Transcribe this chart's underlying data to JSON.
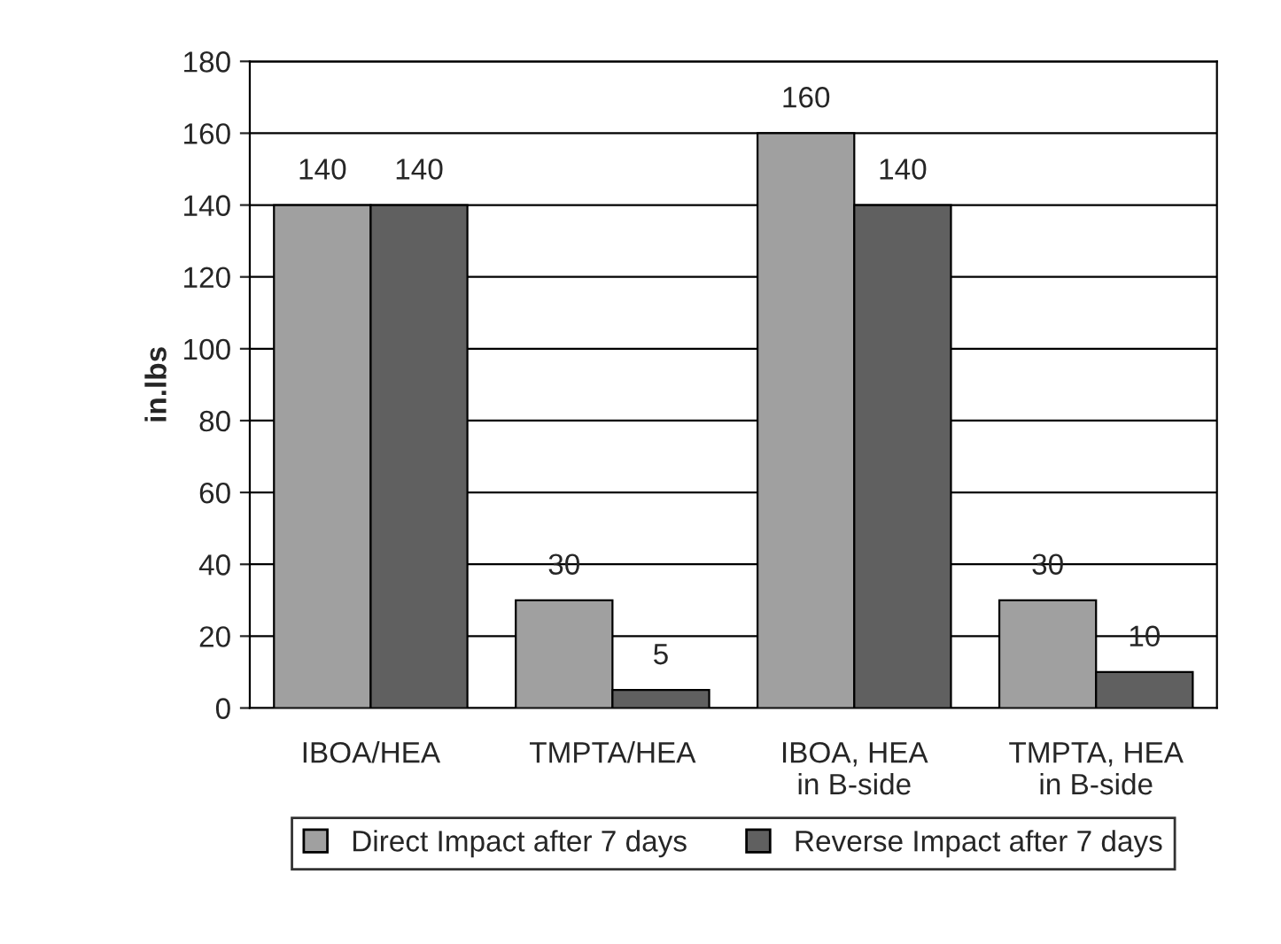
{
  "chart_data": {
    "type": "bar",
    "ylabel": "in.lbs",
    "categories": [
      "IBOA/HEA",
      "TMPTA/HEA",
      "IBOA, HEA\nin B-side",
      "TMPTA, HEA\nin B-side"
    ],
    "series": [
      {
        "name": "Direct Impact after 7 days",
        "color": "#a0a0a0",
        "values": [
          140,
          30,
          160,
          30
        ]
      },
      {
        "name": "Reverse Impact after 7 days",
        "color": "#606060",
        "values": [
          140,
          5,
          140,
          10
        ]
      }
    ],
    "ylim": [
      0,
      180
    ],
    "yticks": [
      0,
      20,
      40,
      60,
      80,
      100,
      120,
      140,
      160,
      180
    ],
    "grid": "y",
    "legend": "bottom",
    "data_labels": true
  }
}
